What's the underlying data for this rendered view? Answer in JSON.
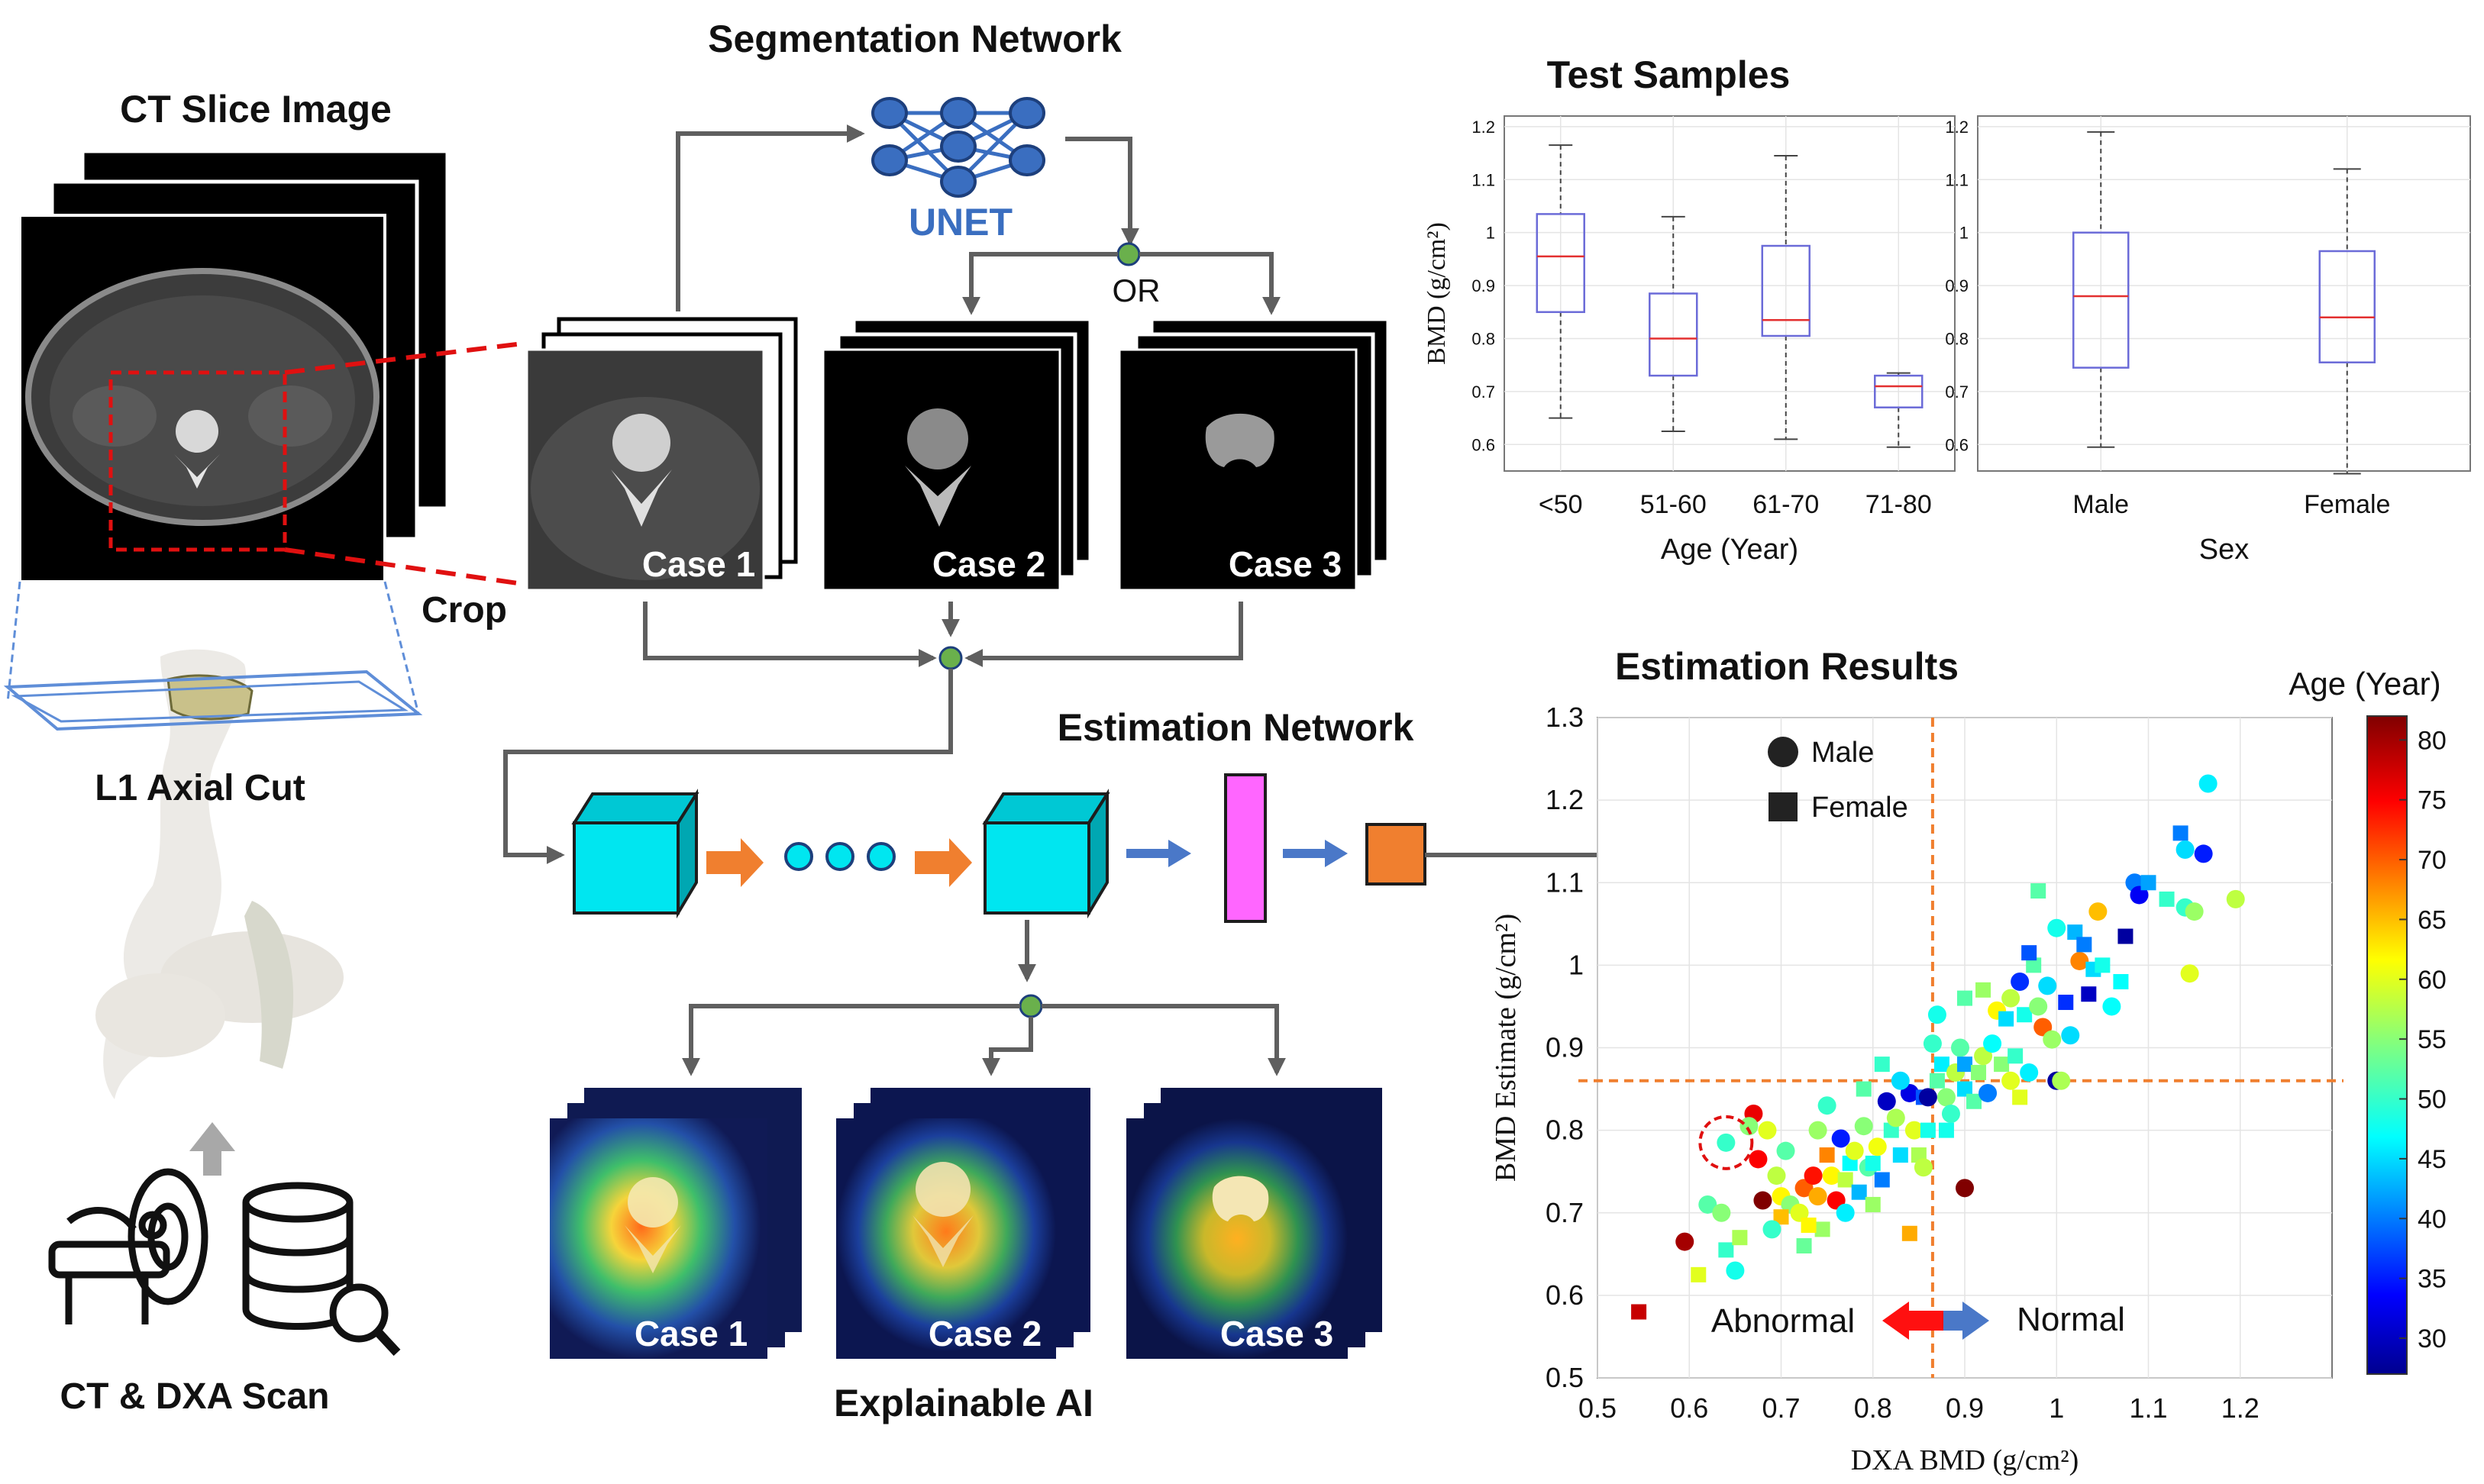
{
  "panels": {
    "ct_slice_title": "CT Slice Image",
    "crop_label": "Crop",
    "l1_cut_label": "L1 Axial Cut",
    "scan_label": "CT & DXA Scan",
    "segmentation_title": "Segmentation Network",
    "unet_label": "UNET",
    "or_label": "OR",
    "case_labels": [
      "Case 1",
      "Case 2",
      "Case 3"
    ],
    "estimation_title": "Estimation Network",
    "xai_title": "Explainable AI",
    "test_title": "Test Samples",
    "results_title": "Estimation Results"
  },
  "colors": {
    "unet_blue": "#3a6ec0",
    "cube_cyan": "#00e6f0",
    "orange_arrow": "#f07f2f",
    "blue_arrow": "#4a78c8",
    "fc_pink": "#ff66ff",
    "output_orange": "#f07f2f",
    "guide_orange": "#f07f2f",
    "ring_red": "#e01010",
    "box_blue": "#6b6bd8",
    "median_red": "#e33030"
  },
  "icons": [
    "neural-net-icon",
    "ct-scanner-icon",
    "database-search-icon",
    "spine-icon"
  ],
  "chart_data": [
    {
      "type": "box",
      "ylabel": "BMD (g/cm²)",
      "xlabel": "Age (Year)",
      "categories": [
        "<50",
        "51-60",
        "61-70",
        "71-80"
      ],
      "ylim": [
        0.55,
        1.22
      ],
      "yticks": [
        "0.6",
        "0.7",
        "0.8",
        "0.9",
        "1",
        "1.1",
        "1.2"
      ],
      "boxes": [
        {
          "min": 0.65,
          "q1": 0.85,
          "median": 0.955,
          "q3": 1.035,
          "max": 1.165
        },
        {
          "min": 0.625,
          "q1": 0.73,
          "median": 0.8,
          "q3": 0.885,
          "max": 1.03
        },
        {
          "min": 0.61,
          "q1": 0.805,
          "median": 0.835,
          "q3": 0.975,
          "max": 1.145
        },
        {
          "min": 0.595,
          "q1": 0.67,
          "median": 0.71,
          "q3": 0.73,
          "max": 0.735
        }
      ],
      "grid": true
    },
    {
      "type": "box",
      "xlabel": "Sex",
      "categories": [
        "Male",
        "Female"
      ],
      "ylim": [
        0.55,
        1.22
      ],
      "yticks": [
        "0.6",
        "0.7",
        "0.8",
        "0.9",
        "1",
        "1.1",
        "1.2"
      ],
      "boxes": [
        {
          "min": 0.595,
          "q1": 0.745,
          "median": 0.88,
          "q3": 1.0,
          "max": 1.19
        },
        {
          "min": 0.545,
          "q1": 0.755,
          "median": 0.84,
          "q3": 0.965,
          "max": 1.12
        }
      ],
      "grid": true
    },
    {
      "type": "scatter",
      "xlabel": "DXA BMD (g/cm²)",
      "ylabel": "BMD Estimate (g/cm²)",
      "xlim": [
        0.5,
        1.3
      ],
      "ylim": [
        0.5,
        1.3
      ],
      "xticks": [
        "0.5",
        "0.6",
        "0.7",
        "0.8",
        "0.9",
        "1",
        "1.1",
        "1.2"
      ],
      "yticks": [
        "0.5",
        "0.6",
        "0.7",
        "0.8",
        "0.9",
        "1",
        "1.1",
        "1.2",
        "1.3"
      ],
      "threshold_x": 0.865,
      "threshold_y": 0.86,
      "legend": [
        "Male",
        "Female"
      ],
      "legend_position": "top-left",
      "abnormal_label": "Abnormal",
      "normal_label": "Normal",
      "highlighted_point": {
        "x": 0.64,
        "y": 0.785
      },
      "colorbar": {
        "label": "Age (Year)",
        "min": 27,
        "max": 82,
        "ticks": [
          "30",
          "35",
          "40",
          "45",
          "50",
          "55",
          "60",
          "65",
          "70",
          "75",
          "80"
        ]
      },
      "points": [
        {
          "x": 0.545,
          "y": 0.58,
          "age": 78,
          "sex": "F"
        },
        {
          "x": 0.595,
          "y": 0.665,
          "age": 80,
          "sex": "M"
        },
        {
          "x": 0.62,
          "y": 0.71,
          "age": 52,
          "sex": "M"
        },
        {
          "x": 0.61,
          "y": 0.625,
          "age": 60,
          "sex": "F"
        },
        {
          "x": 0.635,
          "y": 0.7,
          "age": 55,
          "sex": "M"
        },
        {
          "x": 0.65,
          "y": 0.63,
          "age": 48,
          "sex": "M"
        },
        {
          "x": 0.64,
          "y": 0.655,
          "age": 50,
          "sex": "F"
        },
        {
          "x": 0.655,
          "y": 0.67,
          "age": 57,
          "sex": "F"
        },
        {
          "x": 0.64,
          "y": 0.785,
          "age": 50,
          "sex": "M"
        },
        {
          "x": 0.67,
          "y": 0.82,
          "age": 76,
          "sex": "M"
        },
        {
          "x": 0.685,
          "y": 0.8,
          "age": 60,
          "sex": "M"
        },
        {
          "x": 0.675,
          "y": 0.765,
          "age": 75,
          "sex": "M"
        },
        {
          "x": 0.695,
          "y": 0.745,
          "age": 58,
          "sex": "M"
        },
        {
          "x": 0.7,
          "y": 0.72,
          "age": 62,
          "sex": "M"
        },
        {
          "x": 0.68,
          "y": 0.715,
          "age": 82,
          "sex": "M"
        },
        {
          "x": 0.71,
          "y": 0.71,
          "age": 55,
          "sex": "M"
        },
        {
          "x": 0.725,
          "y": 0.73,
          "age": 70,
          "sex": "M"
        },
        {
          "x": 0.72,
          "y": 0.7,
          "age": 60,
          "sex": "M"
        },
        {
          "x": 0.735,
          "y": 0.745,
          "age": 74,
          "sex": "M"
        },
        {
          "x": 0.74,
          "y": 0.72,
          "age": 66,
          "sex": "M"
        },
        {
          "x": 0.75,
          "y": 0.77,
          "age": 68,
          "sex": "F"
        },
        {
          "x": 0.745,
          "y": 0.68,
          "age": 56,
          "sex": "F"
        },
        {
          "x": 0.725,
          "y": 0.66,
          "age": 53,
          "sex": "F"
        },
        {
          "x": 0.76,
          "y": 0.715,
          "age": 75,
          "sex": "M"
        },
        {
          "x": 0.755,
          "y": 0.745,
          "age": 62,
          "sex": "M"
        },
        {
          "x": 0.77,
          "y": 0.74,
          "age": 58,
          "sex": "F"
        },
        {
          "x": 0.775,
          "y": 0.76,
          "age": 47,
          "sex": "F"
        },
        {
          "x": 0.785,
          "y": 0.725,
          "age": 43,
          "sex": "F"
        },
        {
          "x": 0.78,
          "y": 0.775,
          "age": 60,
          "sex": "M"
        },
        {
          "x": 0.765,
          "y": 0.79,
          "age": 35,
          "sex": "M"
        },
        {
          "x": 0.79,
          "y": 0.805,
          "age": 55,
          "sex": "M"
        },
        {
          "x": 0.795,
          "y": 0.755,
          "age": 52,
          "sex": "M"
        },
        {
          "x": 0.8,
          "y": 0.76,
          "age": 48,
          "sex": "F"
        },
        {
          "x": 0.81,
          "y": 0.74,
          "age": 40,
          "sex": "F"
        },
        {
          "x": 0.805,
          "y": 0.78,
          "age": 61,
          "sex": "M"
        },
        {
          "x": 0.815,
          "y": 0.835,
          "age": 30,
          "sex": "M"
        },
        {
          "x": 0.82,
          "y": 0.8,
          "age": 50,
          "sex": "F"
        },
        {
          "x": 0.83,
          "y": 0.77,
          "age": 45,
          "sex": "F"
        },
        {
          "x": 0.825,
          "y": 0.815,
          "age": 57,
          "sex": "M"
        },
        {
          "x": 0.84,
          "y": 0.845,
          "age": 32,
          "sex": "M"
        },
        {
          "x": 0.845,
          "y": 0.8,
          "age": 60,
          "sex": "M"
        },
        {
          "x": 0.85,
          "y": 0.77,
          "age": 57,
          "sex": "F"
        },
        {
          "x": 0.855,
          "y": 0.84,
          "age": 38,
          "sex": "F"
        },
        {
          "x": 0.86,
          "y": 0.8,
          "age": 48,
          "sex": "F"
        },
        {
          "x": 0.86,
          "y": 0.84,
          "age": 28,
          "sex": "M"
        },
        {
          "x": 0.87,
          "y": 0.86,
          "age": 52,
          "sex": "F"
        },
        {
          "x": 0.875,
          "y": 0.88,
          "age": 46,
          "sex": "F"
        },
        {
          "x": 0.88,
          "y": 0.84,
          "age": 55,
          "sex": "M"
        },
        {
          "x": 0.885,
          "y": 0.82,
          "age": 50,
          "sex": "M"
        },
        {
          "x": 0.89,
          "y": 0.87,
          "age": 58,
          "sex": "M"
        },
        {
          "x": 0.895,
          "y": 0.9,
          "age": 52,
          "sex": "M"
        },
        {
          "x": 0.9,
          "y": 0.85,
          "age": 45,
          "sex": "F"
        },
        {
          "x": 0.9,
          "y": 0.88,
          "age": 42,
          "sex": "F"
        },
        {
          "x": 0.91,
          "y": 0.835,
          "age": 52,
          "sex": "F"
        },
        {
          "x": 0.915,
          "y": 0.87,
          "age": 55,
          "sex": "F"
        },
        {
          "x": 0.92,
          "y": 0.89,
          "age": 58,
          "sex": "M"
        },
        {
          "x": 0.925,
          "y": 0.845,
          "age": 40,
          "sex": "M"
        },
        {
          "x": 0.93,
          "y": 0.905,
          "age": 47,
          "sex": "M"
        },
        {
          "x": 0.935,
          "y": 0.945,
          "age": 62,
          "sex": "M"
        },
        {
          "x": 0.94,
          "y": 0.88,
          "age": 55,
          "sex": "F"
        },
        {
          "x": 0.945,
          "y": 0.935,
          "age": 45,
          "sex": "F"
        },
        {
          "x": 0.95,
          "y": 0.96,
          "age": 58,
          "sex": "M"
        },
        {
          "x": 0.955,
          "y": 0.89,
          "age": 50,
          "sex": "F"
        },
        {
          "x": 0.96,
          "y": 0.98,
          "age": 36,
          "sex": "M"
        },
        {
          "x": 0.965,
          "y": 0.94,
          "age": 48,
          "sex": "F"
        },
        {
          "x": 0.97,
          "y": 0.87,
          "age": 46,
          "sex": "M"
        },
        {
          "x": 0.975,
          "y": 1.0,
          "age": 52,
          "sex": "F"
        },
        {
          "x": 0.98,
          "y": 0.95,
          "age": 55,
          "sex": "M"
        },
        {
          "x": 0.985,
          "y": 0.925,
          "age": 70,
          "sex": "M"
        },
        {
          "x": 0.99,
          "y": 0.975,
          "age": 45,
          "sex": "M"
        },
        {
          "x": 0.995,
          "y": 0.91,
          "age": 56,
          "sex": "M"
        },
        {
          "x": 0.97,
          "y": 1.015,
          "age": 38,
          "sex": "F"
        },
        {
          "x": 1.0,
          "y": 0.86,
          "age": 28,
          "sex": "M"
        },
        {
          "x": 1.0,
          "y": 1.045,
          "age": 48,
          "sex": "M"
        },
        {
          "x": 1.005,
          "y": 0.86,
          "age": 57,
          "sex": "M"
        },
        {
          "x": 1.01,
          "y": 0.955,
          "age": 36,
          "sex": "F"
        },
        {
          "x": 1.015,
          "y": 0.915,
          "age": 45,
          "sex": "M"
        },
        {
          "x": 1.02,
          "y": 1.04,
          "age": 43,
          "sex": "F"
        },
        {
          "x": 1.025,
          "y": 1.005,
          "age": 68,
          "sex": "M"
        },
        {
          "x": 1.03,
          "y": 1.025,
          "age": 40,
          "sex": "F"
        },
        {
          "x": 1.035,
          "y": 0.965,
          "age": 30,
          "sex": "F"
        },
        {
          "x": 1.04,
          "y": 0.995,
          "age": 45,
          "sex": "F"
        },
        {
          "x": 1.045,
          "y": 1.065,
          "age": 65,
          "sex": "M"
        },
        {
          "x": 1.05,
          "y": 1.0,
          "age": 48,
          "sex": "F"
        },
        {
          "x": 1.06,
          "y": 0.95,
          "age": 47,
          "sex": "M"
        },
        {
          "x": 1.075,
          "y": 1.035,
          "age": 28,
          "sex": "F"
        },
        {
          "x": 1.085,
          "y": 1.1,
          "age": 40,
          "sex": "M"
        },
        {
          "x": 1.09,
          "y": 1.085,
          "age": 33,
          "sex": "M"
        },
        {
          "x": 1.1,
          "y": 1.1,
          "age": 42,
          "sex": "F"
        },
        {
          "x": 1.12,
          "y": 1.08,
          "age": 50,
          "sex": "F"
        },
        {
          "x": 1.135,
          "y": 1.16,
          "age": 40,
          "sex": "F"
        },
        {
          "x": 1.14,
          "y": 1.14,
          "age": 45,
          "sex": "M"
        },
        {
          "x": 1.14,
          "y": 1.07,
          "age": 50,
          "sex": "M"
        },
        {
          "x": 1.145,
          "y": 0.99,
          "age": 60,
          "sex": "M"
        },
        {
          "x": 1.15,
          "y": 1.065,
          "age": 56,
          "sex": "M"
        },
        {
          "x": 1.16,
          "y": 1.135,
          "age": 35,
          "sex": "M"
        },
        {
          "x": 1.165,
          "y": 1.22,
          "age": 46,
          "sex": "M"
        },
        {
          "x": 1.195,
          "y": 1.08,
          "age": 58,
          "sex": "M"
        },
        {
          "x": 0.665,
          "y": 0.805,
          "age": 55,
          "sex": "M"
        },
        {
          "x": 0.705,
          "y": 0.775,
          "age": 52,
          "sex": "M"
        },
        {
          "x": 0.73,
          "y": 0.685,
          "age": 62,
          "sex": "F"
        },
        {
          "x": 0.84,
          "y": 0.675,
          "age": 66,
          "sex": "F"
        },
        {
          "x": 0.9,
          "y": 0.73,
          "age": 82,
          "sex": "M"
        },
        {
          "x": 0.75,
          "y": 0.83,
          "age": 50,
          "sex": "M"
        },
        {
          "x": 0.79,
          "y": 0.85,
          "age": 52,
          "sex": "F"
        },
        {
          "x": 0.83,
          "y": 0.86,
          "age": 45,
          "sex": "M"
        },
        {
          "x": 0.81,
          "y": 0.88,
          "age": 50,
          "sex": "F"
        },
        {
          "x": 0.865,
          "y": 0.905,
          "age": 50,
          "sex": "M"
        },
        {
          "x": 0.87,
          "y": 0.94,
          "age": 48,
          "sex": "M"
        },
        {
          "x": 0.9,
          "y": 0.96,
          "age": 52,
          "sex": "F"
        },
        {
          "x": 0.96,
          "y": 0.84,
          "age": 60,
          "sex": "F"
        },
        {
          "x": 0.92,
          "y": 0.97,
          "age": 56,
          "sex": "F"
        },
        {
          "x": 0.855,
          "y": 0.755,
          "age": 58,
          "sex": "M"
        },
        {
          "x": 0.74,
          "y": 0.8,
          "age": 56,
          "sex": "M"
        },
        {
          "x": 0.7,
          "y": 0.695,
          "age": 65,
          "sex": "F"
        },
        {
          "x": 0.8,
          "y": 0.71,
          "age": 56,
          "sex": "F"
        },
        {
          "x": 0.88,
          "y": 0.8,
          "age": 48,
          "sex": "F"
        },
        {
          "x": 0.98,
          "y": 1.09,
          "age": 52,
          "sex": "F"
        },
        {
          "x": 1.07,
          "y": 0.98,
          "age": 47,
          "sex": "F"
        },
        {
          "x": 0.95,
          "y": 0.86,
          "age": 60,
          "sex": "M"
        },
        {
          "x": 0.77,
          "y": 0.7,
          "age": 46,
          "sex": "M"
        },
        {
          "x": 0.69,
          "y": 0.68,
          "age": 50,
          "sex": "M"
        }
      ]
    }
  ]
}
